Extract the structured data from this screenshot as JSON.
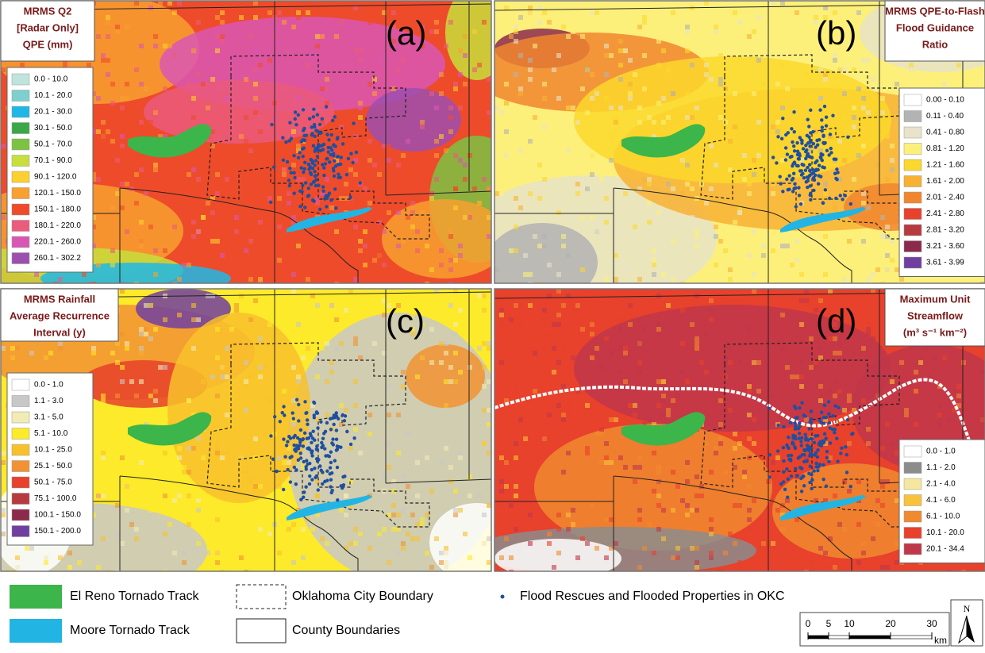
{
  "panels": [
    {
      "label": "(a)",
      "title": [
        "MRMS Q2",
        "[Radar Only]",
        "QPE (mm)"
      ],
      "legend": [
        {
          "label": "0.0 - 10.0",
          "color": "#bfe4dd"
        },
        {
          "label": "10.1 - 20.0",
          "color": "#7fcfcf"
        },
        {
          "label": "20.1 - 30.0",
          "color": "#1fb8e6"
        },
        {
          "label": "30.1 - 50.0",
          "color": "#3aa846"
        },
        {
          "label": "50.1 - 70.0",
          "color": "#7dc242"
        },
        {
          "label": "70.1 - 90.0",
          "color": "#c8de3c"
        },
        {
          "label": "90.1 - 120.0",
          "color": "#fcd02f"
        },
        {
          "label": "120.1 - 150.0",
          "color": "#f8a030"
        },
        {
          "label": "150.1 - 180.0",
          "color": "#ee4b2b"
        },
        {
          "label": "180.1 - 220.0",
          "color": "#ea5b7c"
        },
        {
          "label": "220.1 - 260.0",
          "color": "#d957b4"
        },
        {
          "label": "260.1 - 302.2",
          "color": "#9d4fb0"
        }
      ]
    },
    {
      "label": "(b)",
      "title": [
        "MRMS QPE-to-Flash",
        "Flood Guidance",
        "Ratio"
      ],
      "legend": [
        {
          "label": "0.00 - 0.10",
          "color": "#ffffff"
        },
        {
          "label": "0.11 - 0.40",
          "color": "#b3b3b3"
        },
        {
          "label": "0.41 - 0.80",
          "color": "#e8e3c8"
        },
        {
          "label": "0.81 - 1.20",
          "color": "#fcf07a"
        },
        {
          "label": "1.21 - 1.60",
          "color": "#fbd82c"
        },
        {
          "label": "1.61 - 2.00",
          "color": "#f8b133"
        },
        {
          "label": "2.01 - 2.40",
          "color": "#f1862f"
        },
        {
          "label": "2.41 - 2.80",
          "color": "#e8412c"
        },
        {
          "label": "2.81 - 3.20",
          "color": "#b73a3e"
        },
        {
          "label": "3.21 - 3.60",
          "color": "#8c2a4c"
        },
        {
          "label": "3.61 - 3.99",
          "color": "#7040a0"
        }
      ]
    },
    {
      "label": "(c)",
      "title": [
        "MRMS Rainfall",
        "Average Recurrence",
        "Interval (y)"
      ],
      "legend": [
        {
          "label": "0.0 - 1.0",
          "color": "#ffffff"
        },
        {
          "label": "1.1 - 3.0",
          "color": "#c8c8c8"
        },
        {
          "label": "3.1 - 5.0",
          "color": "#f1ebb5"
        },
        {
          "label": "5.1 - 10.0",
          "color": "#fdea2a"
        },
        {
          "label": "10.1 - 25.0",
          "color": "#f8c12c"
        },
        {
          "label": "25.1 - 50.0",
          "color": "#f29233"
        },
        {
          "label": "50.1 - 75.0",
          "color": "#e8412c"
        },
        {
          "label": "75.1 - 100.0",
          "color": "#b73a3e"
        },
        {
          "label": "100.1 - 150.0",
          "color": "#8c2a4c"
        },
        {
          "label": "150.1 - 200.0",
          "color": "#7040a0"
        }
      ]
    },
    {
      "label": "(d)",
      "title": [
        "Maximum Unit",
        "Streamflow",
        "(m³ s⁻¹ km⁻²)"
      ],
      "legend": [
        {
          "label": "0.0 - 1.0",
          "color": "#ffffff"
        },
        {
          "label": "1.1 - 2.0",
          "color": "#8c8c8c"
        },
        {
          "label": "2.1 - 4.0",
          "color": "#f5e6a0"
        },
        {
          "label": "4.1 - 6.0",
          "color": "#f8c33a"
        },
        {
          "label": "6.1 - 10.0",
          "color": "#f08a2f"
        },
        {
          "label": "10.1 - 20.0",
          "color": "#e8412c"
        },
        {
          "label": "20.1 - 34.4",
          "color": "#c0374a"
        }
      ]
    }
  ],
  "legend": [
    {
      "label": "El Reno Tornado Track",
      "color": "#3cb54a"
    },
    {
      "label": "Moore Tornado Track",
      "color": "#22b5e3"
    },
    {
      "label": "Oklahoma City Boundary"
    },
    {
      "label": "County Boundaries"
    },
    {
      "label": "Flood Rescues and Flooded Properties in OKC",
      "color": "#1f4fa0"
    }
  ],
  "scale_bar": {
    "ticks": [
      0,
      5,
      10,
      20,
      30
    ],
    "unit": "km"
  },
  "north": "N"
}
